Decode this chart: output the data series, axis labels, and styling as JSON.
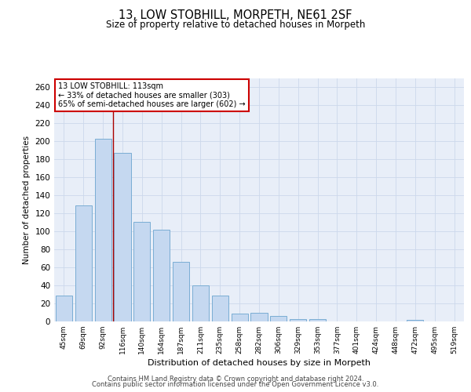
{
  "title": "13, LOW STOBHILL, MORPETH, NE61 2SF",
  "subtitle": "Size of property relative to detached houses in Morpeth",
  "xlabel": "Distribution of detached houses by size in Morpeth",
  "ylabel": "Number of detached properties",
  "categories": [
    "45sqm",
    "69sqm",
    "92sqm",
    "116sqm",
    "140sqm",
    "164sqm",
    "187sqm",
    "211sqm",
    "235sqm",
    "258sqm",
    "282sqm",
    "306sqm",
    "329sqm",
    "353sqm",
    "377sqm",
    "401sqm",
    "424sqm",
    "448sqm",
    "472sqm",
    "495sqm",
    "519sqm"
  ],
  "values": [
    29,
    129,
    203,
    187,
    111,
    102,
    66,
    40,
    29,
    9,
    10,
    6,
    3,
    3,
    0,
    0,
    0,
    0,
    2,
    0,
    0
  ],
  "bar_color": "#c5d8f0",
  "bar_edge_color": "#7aadd4",
  "vline_color": "#aa0000",
  "annotation_text": "13 LOW STOBHILL: 113sqm\n← 33% of detached houses are smaller (303)\n65% of semi-detached houses are larger (602) →",
  "annotation_box_color": "white",
  "annotation_box_edge_color": "#cc0000",
  "grid_color": "#ccd8eb",
  "background_color": "#e8eef8",
  "ylim": [
    0,
    270
  ],
  "yticks": [
    0,
    20,
    40,
    60,
    80,
    100,
    120,
    140,
    160,
    180,
    200,
    220,
    240,
    260
  ],
  "footer1": "Contains HM Land Registry data © Crown copyright and database right 2024.",
  "footer2": "Contains public sector information licensed under the Open Government Licence v3.0."
}
